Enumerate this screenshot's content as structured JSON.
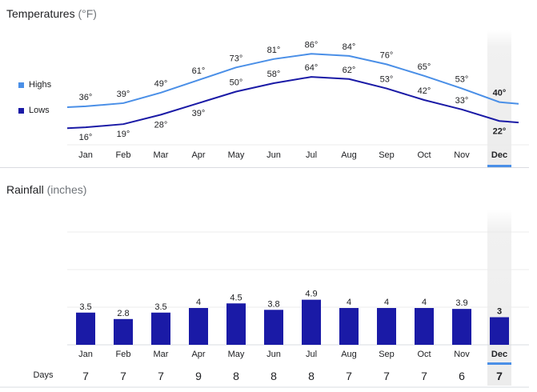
{
  "temperatures": {
    "title": "Temperatures",
    "unit": "(°F)",
    "legend": [
      {
        "name": "Highs",
        "color": "#4a8fe7"
      },
      {
        "name": "Lows",
        "color": "#1a1aa6"
      }
    ]
  },
  "rainfall": {
    "title": "Rainfall",
    "unit": "(inches)",
    "days_label": "Days"
  },
  "selected_month": "Dec",
  "chart_data": [
    {
      "type": "line",
      "title": "Temperatures (°F)",
      "categories": [
        "Jan",
        "Feb",
        "Mar",
        "Apr",
        "May",
        "Jun",
        "Jul",
        "Aug",
        "Sep",
        "Oct",
        "Nov",
        "Dec"
      ],
      "series": [
        {
          "name": "Highs",
          "color": "#4a8fe7",
          "values": [
            36,
            39,
            49,
            61,
            73,
            81,
            86,
            84,
            76,
            65,
            53,
            40
          ],
          "labels": [
            "36°",
            "39°",
            "49°",
            "61°",
            "73°",
            "81°",
            "86°",
            "84°",
            "76°",
            "65°",
            "53°",
            "40°"
          ]
        },
        {
          "name": "Lows",
          "color": "#1a1aa6",
          "values": [
            16,
            19,
            28,
            39,
            50,
            58,
            64,
            62,
            53,
            42,
            33,
            22
          ],
          "labels": [
            "16°",
            "19°",
            "28°",
            "39°",
            "50°",
            "58°",
            "64°",
            "62°",
            "53°",
            "42°",
            "33°",
            "22°"
          ]
        }
      ]
    },
    {
      "type": "bar",
      "title": "Rainfall (inches)",
      "categories": [
        "Jan",
        "Feb",
        "Mar",
        "Apr",
        "May",
        "Jun",
        "Jul",
        "Aug",
        "Sep",
        "Oct",
        "Nov",
        "Dec"
      ],
      "values": [
        3.5,
        2.8,
        3.5,
        4,
        4.5,
        3.8,
        4.9,
        4,
        4,
        4,
        3.9,
        3
      ],
      "labels": [
        "3.5",
        "2.8",
        "3.5",
        "4",
        "4.5",
        "3.8",
        "4.9",
        "4",
        "4",
        "4",
        "3.9",
        "3"
      ],
      "ylim": [
        0,
        10
      ],
      "color": "#1a1aa6",
      "days": [
        "7",
        "7",
        "7",
        "9",
        "8",
        "8",
        "8",
        "7",
        "7",
        "7",
        "6",
        "7"
      ]
    }
  ]
}
